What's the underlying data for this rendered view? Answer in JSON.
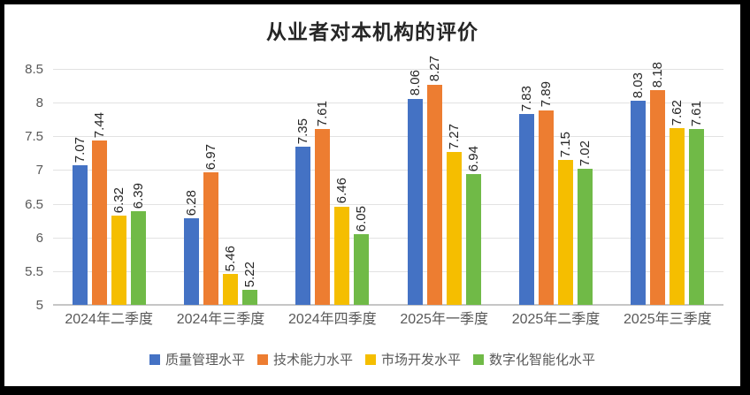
{
  "chart_data": {
    "type": "bar",
    "title": "从业者对本机构的评价",
    "categories": [
      "2024年二季度",
      "2024年三季度",
      "2024年四季度",
      "2025年一季度",
      "2025年二季度",
      "2025年三季度"
    ],
    "series": [
      {
        "name": "质量管理水平",
        "color": "#4472C4",
        "values": [
          7.07,
          6.28,
          7.35,
          8.06,
          7.83,
          8.03
        ]
      },
      {
        "name": "技术能力水平",
        "color": "#ED7D31",
        "values": [
          7.44,
          6.97,
          7.61,
          8.27,
          7.89,
          8.18
        ]
      },
      {
        "name": "市场开发水平",
        "color": "#F5BE00",
        "values": [
          6.32,
          5.46,
          6.46,
          7.27,
          7.15,
          7.62
        ]
      },
      {
        "name": "数字化智能化水平",
        "color": "#70BA47",
        "values": [
          6.39,
          5.22,
          6.05,
          6.94,
          7.02,
          7.61
        ]
      }
    ],
    "ylim": [
      5,
      8.5
    ],
    "yticks": [
      5,
      5.5,
      6,
      6.5,
      7,
      7.5,
      8,
      8.5
    ],
    "grid": true,
    "legend_position": "bottom",
    "data_labels": true,
    "data_label_rotation": 90,
    "data_label_decimals": 2,
    "styles": {
      "title_color": "#262626",
      "axis_text_color": "#595959",
      "data_label_color": "#262626",
      "gridline_color": "#E2E2E2",
      "axis_line_color": "#C6C6C6",
      "frame_color": "#000000",
      "background_color": "#FFFFFF"
    }
  }
}
